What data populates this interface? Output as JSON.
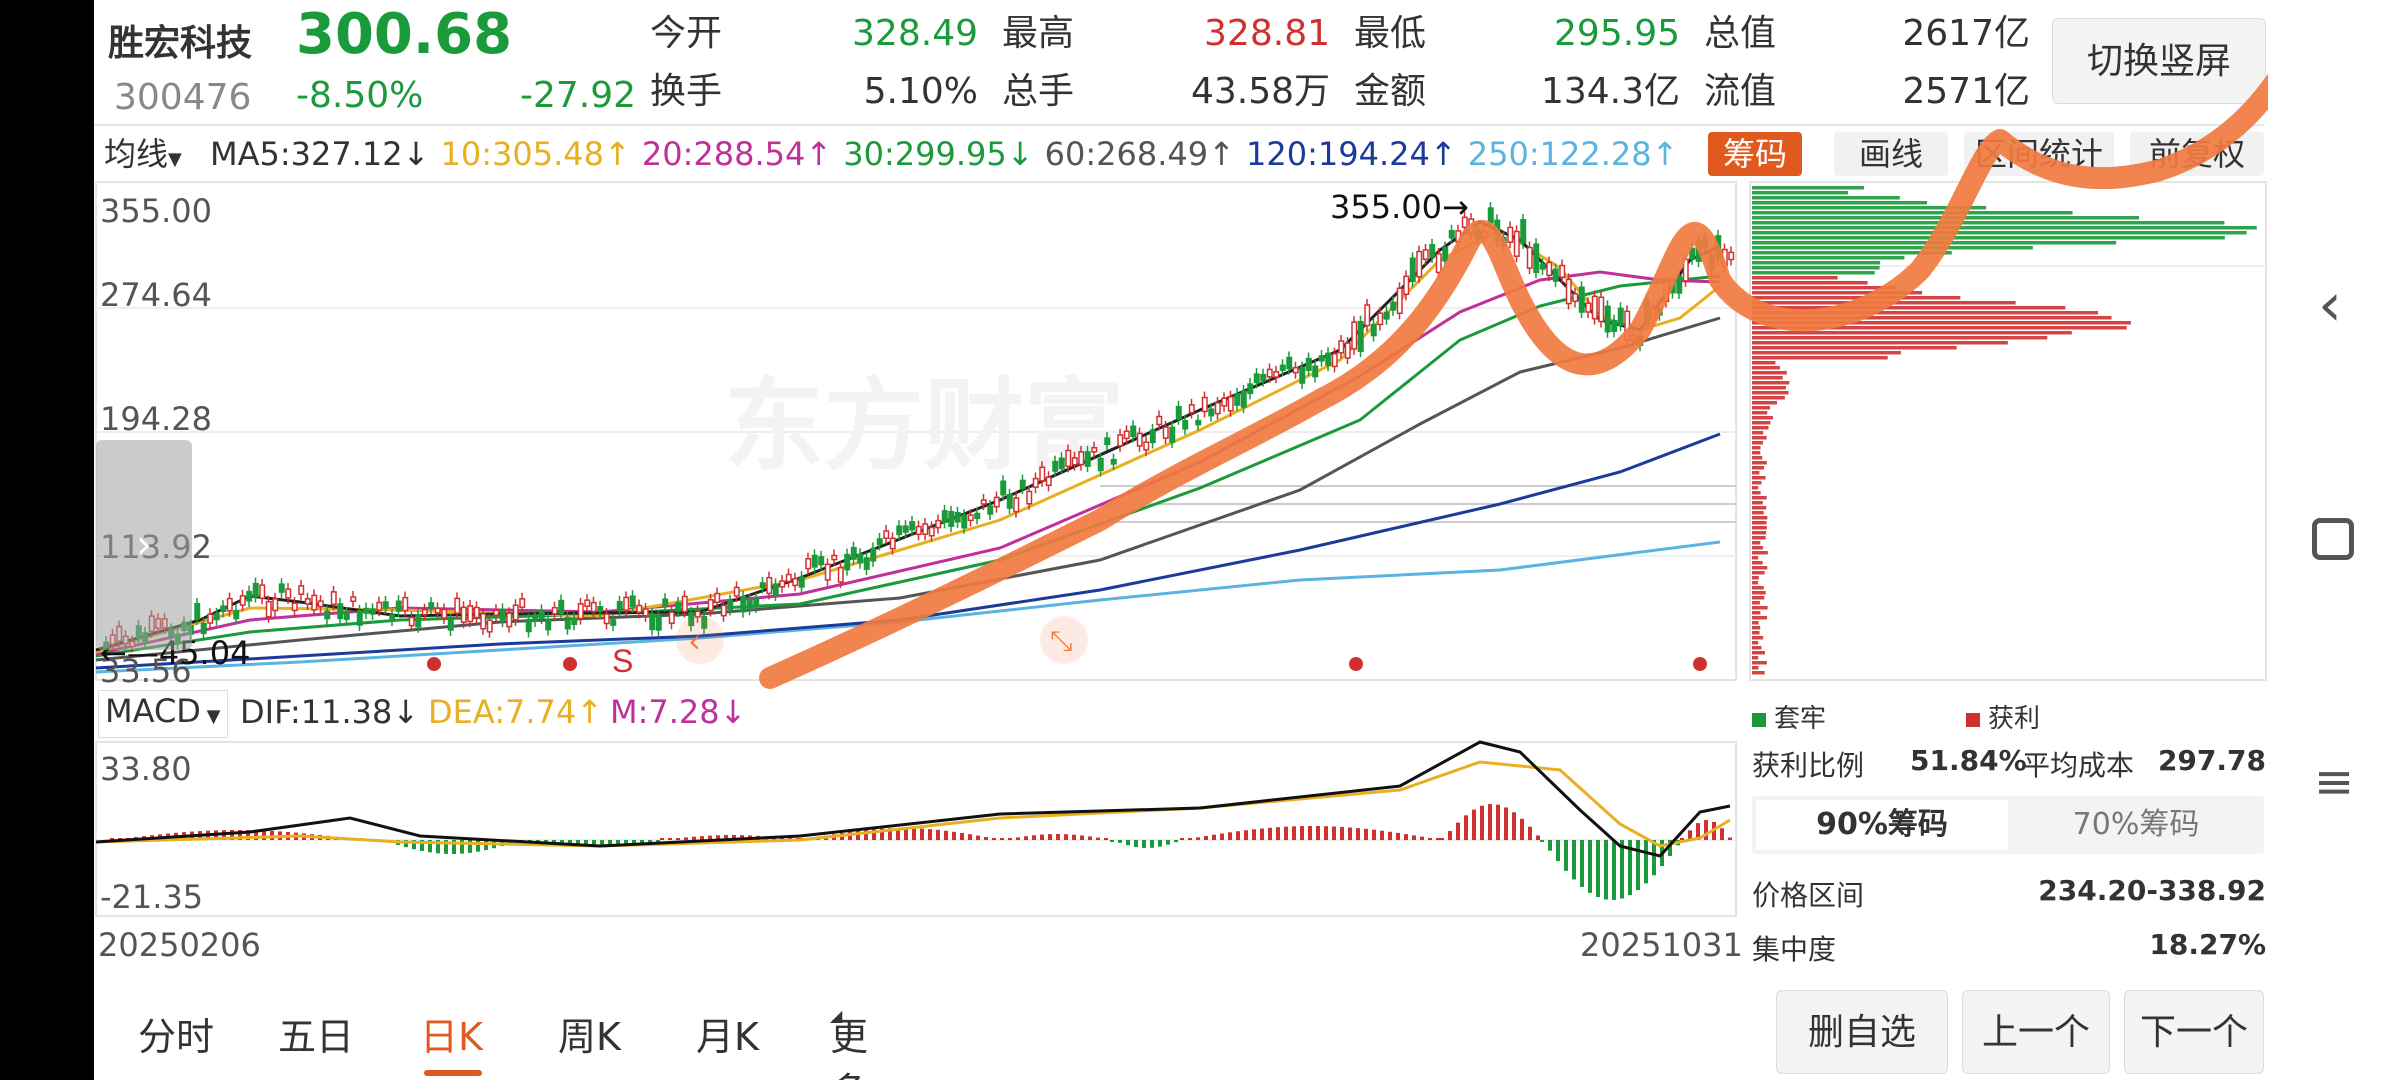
{
  "stock": {
    "name": "胜宏科技",
    "code": "300476",
    "price": "300.68",
    "change_pct": "-8.50%",
    "change_amt": "-27.92"
  },
  "quote": [
    {
      "label": "今开",
      "value": "328.49",
      "color": "#1a9a3a"
    },
    {
      "label": "最高",
      "value": "328.81",
      "color": "#d03030"
    },
    {
      "label": "最低",
      "value": "295.95",
      "color": "#1a9a3a"
    },
    {
      "label": "总值",
      "value": "2617亿",
      "color": "#333333"
    },
    {
      "label": "换手",
      "value": "5.10%",
      "color": "#333333"
    },
    {
      "label": "总手",
      "value": "43.58万",
      "color": "#333333"
    },
    {
      "label": "金额",
      "value": "134.3亿",
      "color": "#333333"
    },
    {
      "label": "流值",
      "value": "2571亿",
      "color": "#333333"
    }
  ],
  "switch_btn": "切换竖屏",
  "ma_selector": "均线",
  "ma_items": [
    {
      "text": "MA5:327.12↓",
      "color": "#333333"
    },
    {
      "text": "10:305.48↑",
      "color": "#e8b020"
    },
    {
      "text": "20:288.54↑",
      "color": "#c0309a"
    },
    {
      "text": "30:299.95↓",
      "color": "#1a9a3a"
    },
    {
      "text": "60:268.49↑",
      "color": "#555555"
    },
    {
      "text": "120:194.24↑",
      "color": "#1c3a9a"
    },
    {
      "text": "250:122.28↑",
      "color": "#5ab4e0"
    }
  ],
  "chip_tabs": {
    "chips": "筹码",
    "draw": "画线",
    "stats": "区间统计",
    "fq": "前复权"
  },
  "kline_axis": [
    "355.00",
    "274.64",
    "194.28",
    "113.92",
    "33.56"
  ],
  "kline_marks": {
    "high": "355.00",
    "low": "45.04"
  },
  "watermark": "东方财富",
  "signal_letter": "S",
  "macd": {
    "selector": "MACD",
    "dif": "DIF:11.38↓",
    "dea": "DEA:7.74↑",
    "m": "M:7.28↓",
    "axis_top": "33.80",
    "axis_bottom": "-21.35"
  },
  "dates": {
    "start": "20250206",
    "end": "20251031"
  },
  "chip_legend": {
    "trapped": "套牢",
    "profit": "获利"
  },
  "chip_stats": {
    "profit_ratio_label": "获利比例",
    "profit_ratio": "51.84%",
    "avg_cost_label": "平均成本",
    "avg_cost": "297.78",
    "tab90": "90%筹码",
    "tab70": "70%筹码",
    "range_label": "价格区间",
    "range": "234.20-338.92",
    "conc_label": "集中度",
    "conc": "18.27%"
  },
  "period_tabs": [
    "分时",
    "五日",
    "日K",
    "周K",
    "月K",
    "更多"
  ],
  "active_period": "日K",
  "buttons": {
    "del": "删自选",
    "prev": "上一个",
    "next": "下一个"
  },
  "colors": {
    "up": "#d03030",
    "down": "#1a9a3a",
    "accent": "#e05a20",
    "annotation": "#f07a40"
  },
  "icons": [
    "back-icon",
    "square-icon",
    "menu-icon",
    "chevron-right-icon"
  ]
}
